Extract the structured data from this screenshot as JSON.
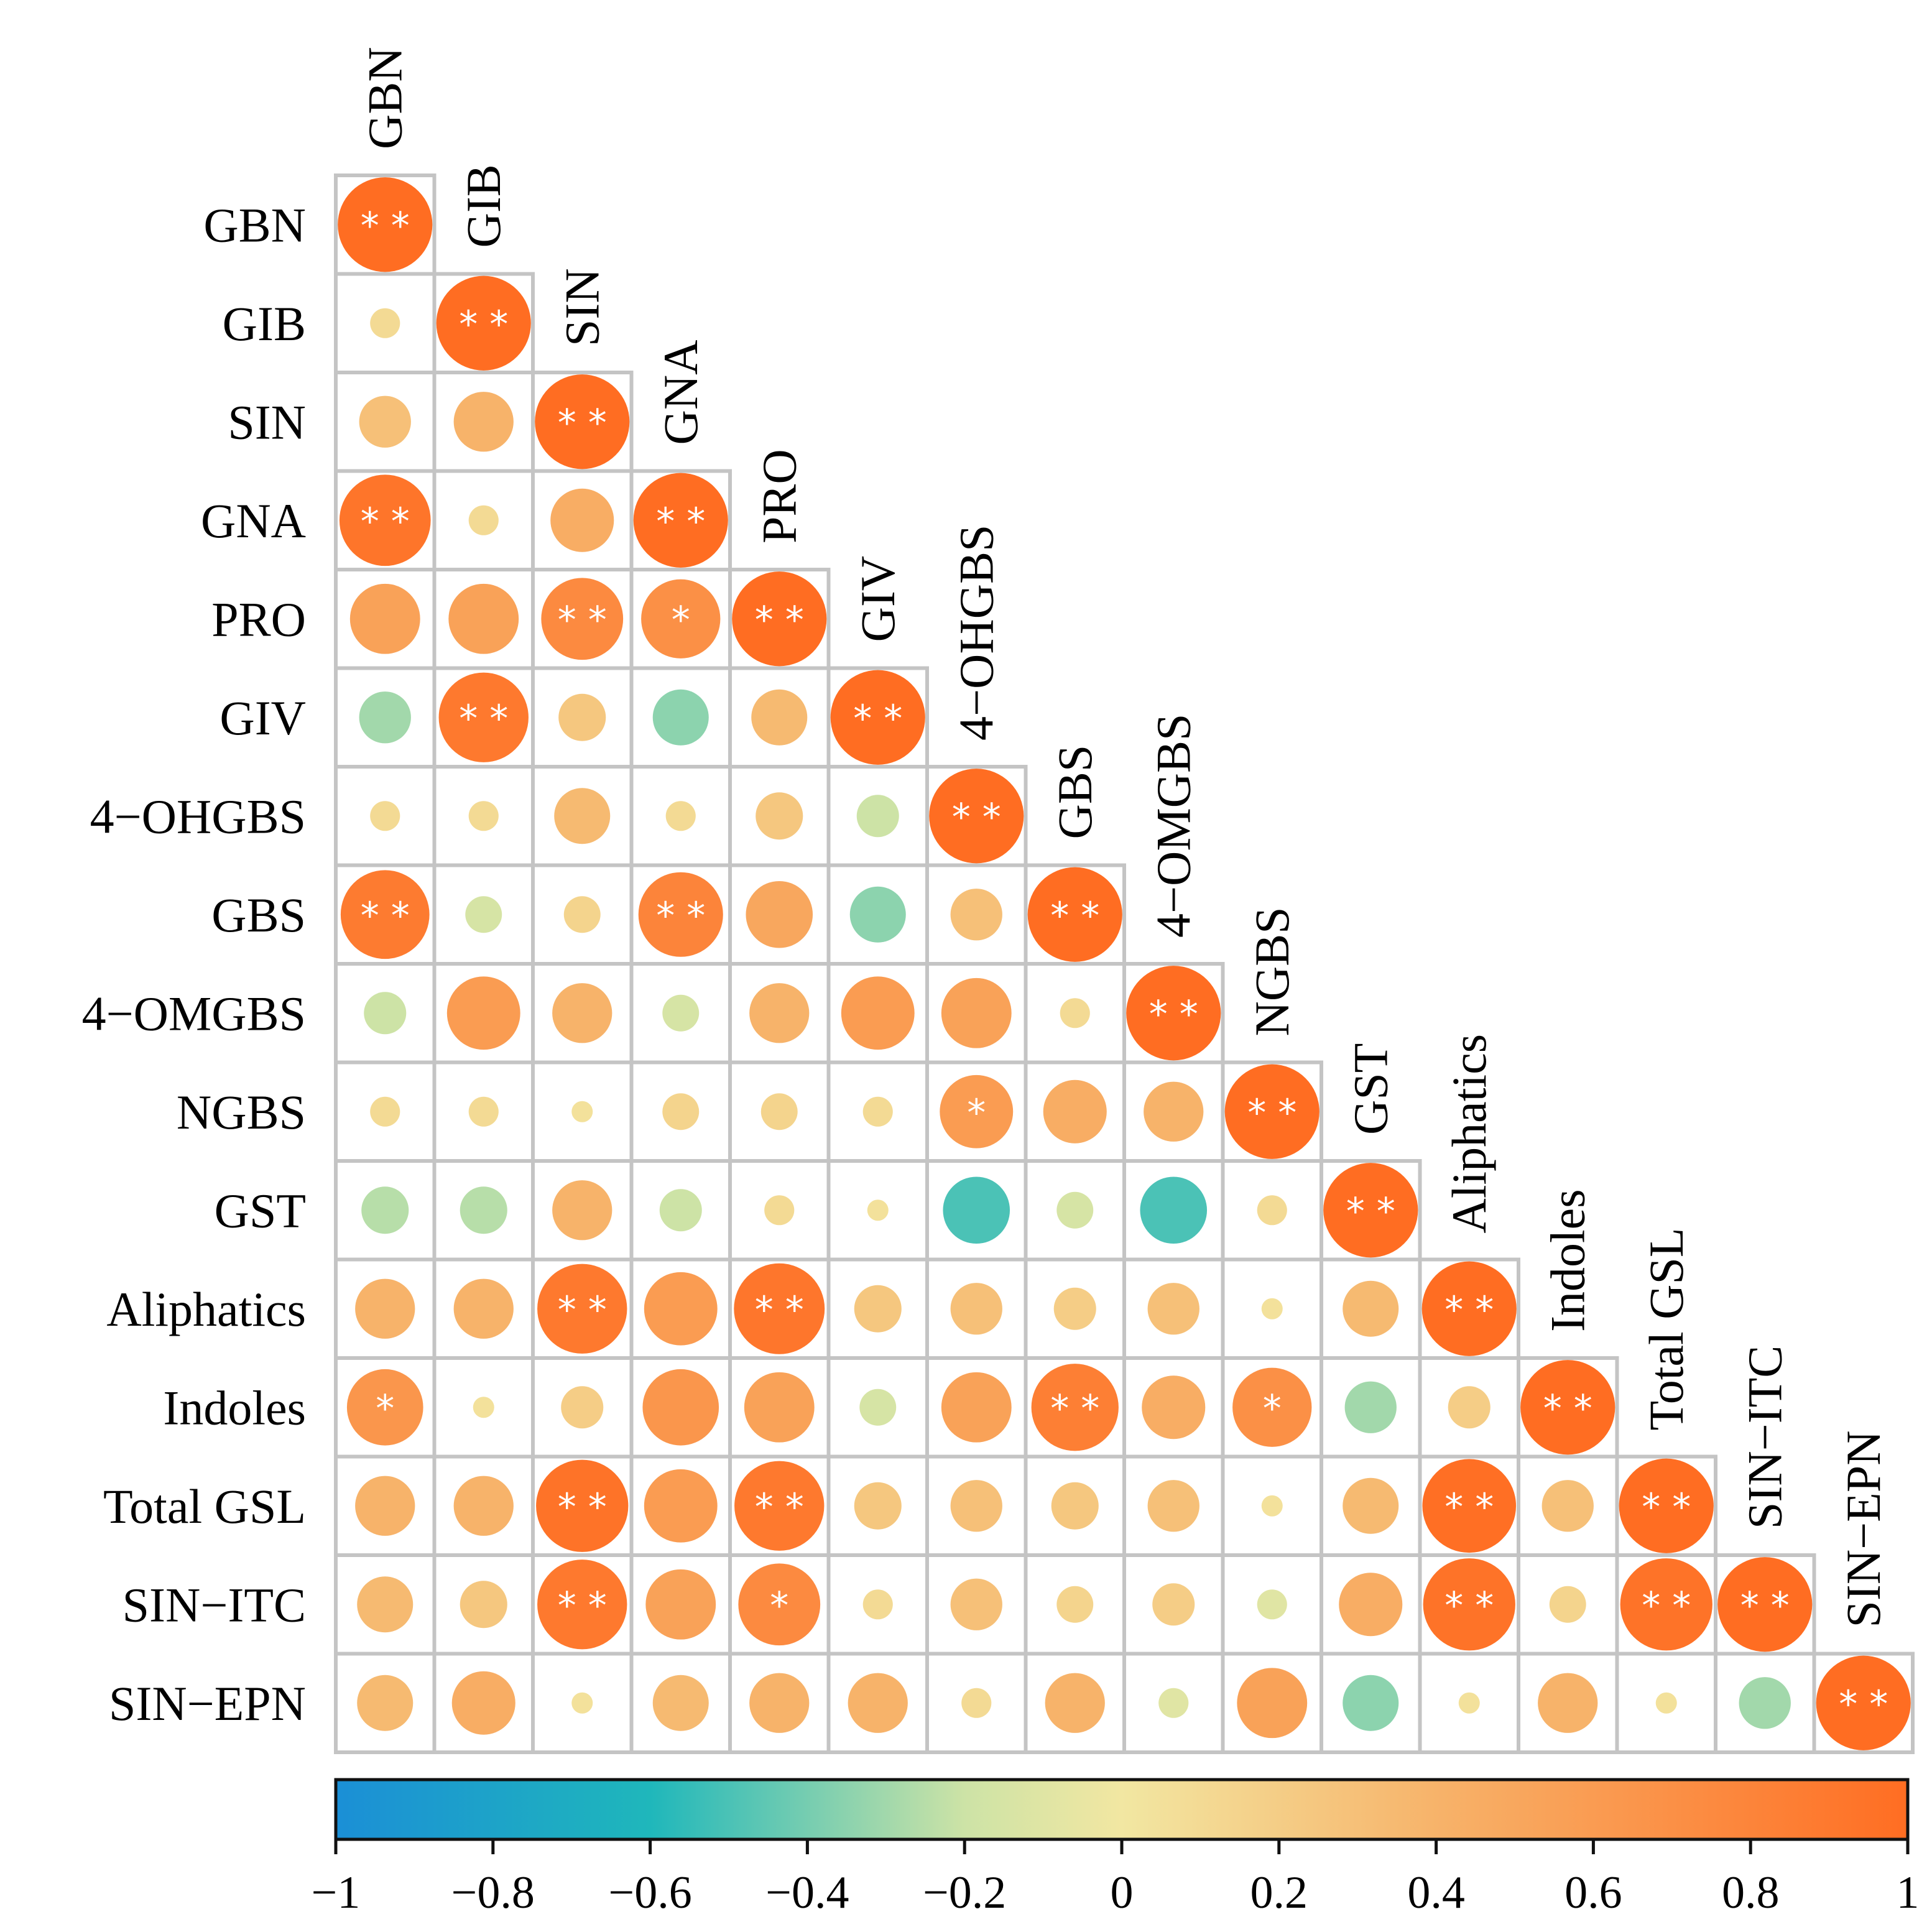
{
  "chart_data": {
    "type": "heatmap",
    "subtype": "lower-triangular correlation matrix with sized circles",
    "variables": [
      "GBN",
      "GIB",
      "SIN",
      "GNA",
      "PRO",
      "GIV",
      "4−OHGBS",
      "GBS",
      "4−OMGBS",
      "NGBS",
      "GST",
      "Aliphatics",
      "Indoles",
      "Total GSL",
      "SIN−ITC",
      "SIN−EPN"
    ],
    "matrix": [
      [
        1.0
      ],
      [
        0.1,
        1.0
      ],
      [
        0.3,
        0.4,
        1.0
      ],
      [
        0.93,
        0.1,
        0.45,
        1.0
      ],
      [
        0.55,
        0.55,
        0.75,
        0.7,
        1.0
      ],
      [
        -0.3,
        0.9,
        0.25,
        -0.35,
        0.35,
        1.0
      ],
      [
        0.1,
        0.1,
        0.35,
        0.1,
        0.25,
        -0.2,
        1.0
      ],
      [
        0.88,
        -0.15,
        0.15,
        0.8,
        0.5,
        -0.35,
        0.3,
        1.0
      ],
      [
        -0.2,
        0.6,
        0.4,
        -0.15,
        0.4,
        0.6,
        0.55,
        0.1,
        1.0
      ],
      [
        0.1,
        0.1,
        0.05,
        0.15,
        0.15,
        0.1,
        0.6,
        0.45,
        0.4,
        1.0
      ],
      [
        -0.25,
        -0.25,
        0.4,
        -0.2,
        0.1,
        0.05,
        -0.5,
        -0.15,
        -0.5,
        0.1,
        1.0
      ],
      [
        0.4,
        0.4,
        0.9,
        0.6,
        0.92,
        0.25,
        0.3,
        0.2,
        0.3,
        0.05,
        0.35,
        1.0
      ],
      [
        0.65,
        0.05,
        0.2,
        0.65,
        0.55,
        -0.15,
        0.55,
        0.85,
        0.45,
        0.7,
        -0.3,
        0.2,
        1.0
      ],
      [
        0.4,
        0.4,
        0.95,
        0.6,
        0.9,
        0.25,
        0.3,
        0.25,
        0.3,
        0.05,
        0.35,
        0.98,
        0.3,
        1.0
      ],
      [
        0.35,
        0.25,
        0.9,
        0.55,
        0.75,
        0.1,
        0.3,
        0.15,
        0.2,
        -0.1,
        0.45,
        0.95,
        0.15,
        0.95,
        1.0
      ],
      [
        0.35,
        0.45,
        0.05,
        0.35,
        0.4,
        0.4,
        0.1,
        0.4,
        -0.1,
        0.55,
        -0.35,
        0.05,
        0.4,
        0.05,
        -0.3,
        1.0
      ]
    ],
    "significance": [
      [
        "**"
      ],
      [
        "",
        "**"
      ],
      [
        "",
        "",
        "**"
      ],
      [
        "**",
        "",
        "",
        "**"
      ],
      [
        "",
        "",
        "**",
        "*",
        "**"
      ],
      [
        "",
        "**",
        "",
        "",
        "",
        "**"
      ],
      [
        "",
        "",
        "",
        "",
        "",
        "",
        "**"
      ],
      [
        "**",
        "",
        "",
        "**",
        "",
        "",
        "",
        "**"
      ],
      [
        "",
        "",
        "",
        "",
        "",
        "",
        "",
        "",
        "**"
      ],
      [
        "",
        "",
        "",
        "",
        "",
        "",
        "*",
        "",
        "",
        "**"
      ],
      [
        "",
        "",
        "",
        "",
        "",
        "",
        "",
        "",
        "",
        "",
        "**"
      ],
      [
        "",
        "",
        "**",
        "",
        "**",
        "",
        "",
        "",
        "",
        "",
        "",
        "**"
      ],
      [
        "*",
        "",
        "",
        "",
        "",
        "",
        "",
        "**",
        "",
        "*",
        "",
        "",
        "**"
      ],
      [
        "",
        "",
        "**",
        "",
        "**",
        "",
        "",
        "",
        "",
        "",
        "",
        "**",
        "",
        "**"
      ],
      [
        "",
        "",
        "**",
        "",
        "*",
        "",
        "",
        "",
        "",
        "",
        "",
        "**",
        "",
        "**",
        "**"
      ],
      [
        "",
        "",
        "",
        "",
        "",
        "",
        "",
        "",
        "",
        "",
        "",
        "",
        "",
        "",
        "",
        "**"
      ]
    ],
    "colorbar": {
      "range": [
        -1,
        1
      ],
      "ticks": [
        -1,
        -0.8,
        -0.6,
        -0.4,
        -0.2,
        0,
        0.2,
        0.4,
        0.6,
        0.8,
        1
      ],
      "tick_labels": [
        "−1",
        "−0.8",
        "−0.6",
        "−0.4",
        "−0.2",
        "0",
        "0.2",
        "0.4",
        "0.6",
        "0.8",
        "1"
      ],
      "colors": [
        {
          "at": -1.0,
          "color": "#1b8fd6"
        },
        {
          "at": -0.6,
          "color": "#1fb7bb"
        },
        {
          "at": -0.2,
          "color": "#cde3a6"
        },
        {
          "at": 0.0,
          "color": "#f2e7a2"
        },
        {
          "at": 0.4,
          "color": "#f7b36a"
        },
        {
          "at": 1.0,
          "color": "#ff6d22"
        }
      ]
    },
    "legend_placement": "bottom"
  }
}
